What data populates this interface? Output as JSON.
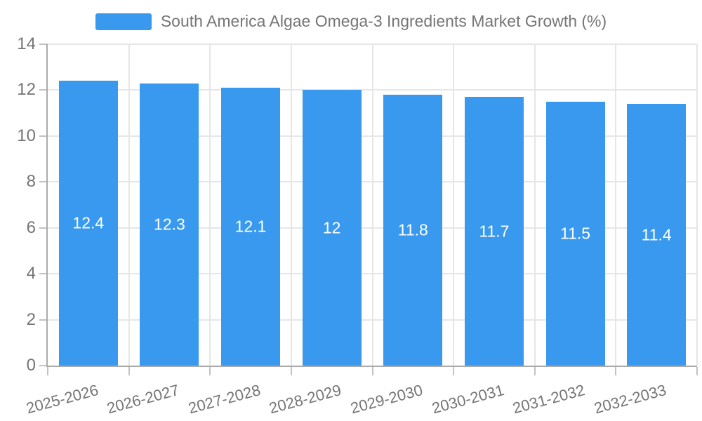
{
  "legend": {
    "label": "South America Algae Omega-3 Ingredients Market Growth (%)"
  },
  "chart_data": {
    "type": "bar",
    "title": "South America Algae Omega-3 Ingredients Market Growth (%)",
    "categories": [
      "2025-2026",
      "2026-2027",
      "2027-2028",
      "2028-2029",
      "2029-2030",
      "2030-2031",
      "2031-2032",
      "2032-2033"
    ],
    "values": [
      12.4,
      12.3,
      12.1,
      12,
      11.8,
      11.7,
      11.5,
      11.4
    ],
    "data_labels": [
      "12.4",
      "12.3",
      "12.1",
      "12",
      "11.8",
      "11.7",
      "11.5",
      "11.4"
    ],
    "xlabel": "",
    "ylabel": "",
    "ylim": [
      0,
      14
    ],
    "y_ticks": [
      0,
      2,
      4,
      6,
      8,
      10,
      12,
      14
    ],
    "grid": true,
    "legend_position": "top",
    "bar_color": "#3899ee",
    "data_label_color": "#ffffff",
    "axis_text_color": "#757575",
    "grid_color": "#e6e6e6",
    "axis_line_color": "#ababab",
    "background_color": "#ffffff"
  }
}
